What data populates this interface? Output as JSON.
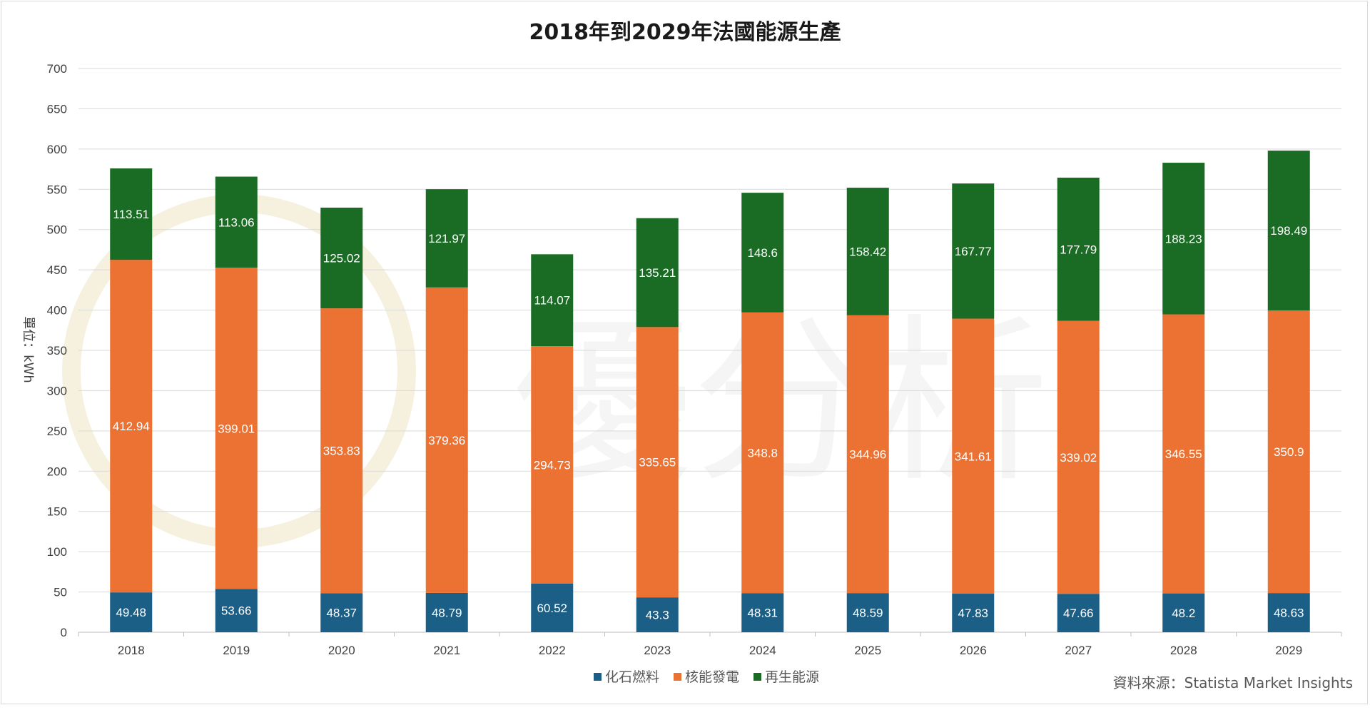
{
  "chart_data": {
    "type": "bar",
    "stacked": true,
    "title": "2018年到2029年法國能源生產",
    "ylabel": "單位：kWh",
    "xlabel": "",
    "ylim": [
      0,
      700
    ],
    "yticks": [
      "0",
      "50",
      "100",
      "150",
      "200",
      "250",
      "300",
      "350",
      "400",
      "450",
      "500",
      "550",
      "600",
      "650",
      "700"
    ],
    "grid": true,
    "legend_position": "bottom",
    "categories": [
      "2018",
      "2019",
      "2020",
      "2021",
      "2022",
      "2023",
      "2024",
      "2025",
      "2026",
      "2027",
      "2028",
      "2029"
    ],
    "series": [
      {
        "name": "化石燃料",
        "color": "#1b5e86",
        "values": [
          49.48,
          53.66,
          48.37,
          48.79,
          60.52,
          43.3,
          48.31,
          48.59,
          47.83,
          47.66,
          48.2,
          48.63
        ]
      },
      {
        "name": "核能發電",
        "color": "#eb7233",
        "values": [
          412.94,
          399.01,
          353.83,
          379.36,
          294.73,
          335.65,
          348.8,
          344.96,
          341.61,
          339.02,
          346.55,
          350.9
        ]
      },
      {
        "name": "再生能源",
        "color": "#1a6b23",
        "values": [
          113.51,
          113.06,
          125.02,
          121.97,
          114.07,
          135.21,
          148.6,
          158.42,
          167.77,
          177.79,
          188.23,
          198.49
        ]
      }
    ],
    "source": "資料來源：Statista Market Insights"
  }
}
